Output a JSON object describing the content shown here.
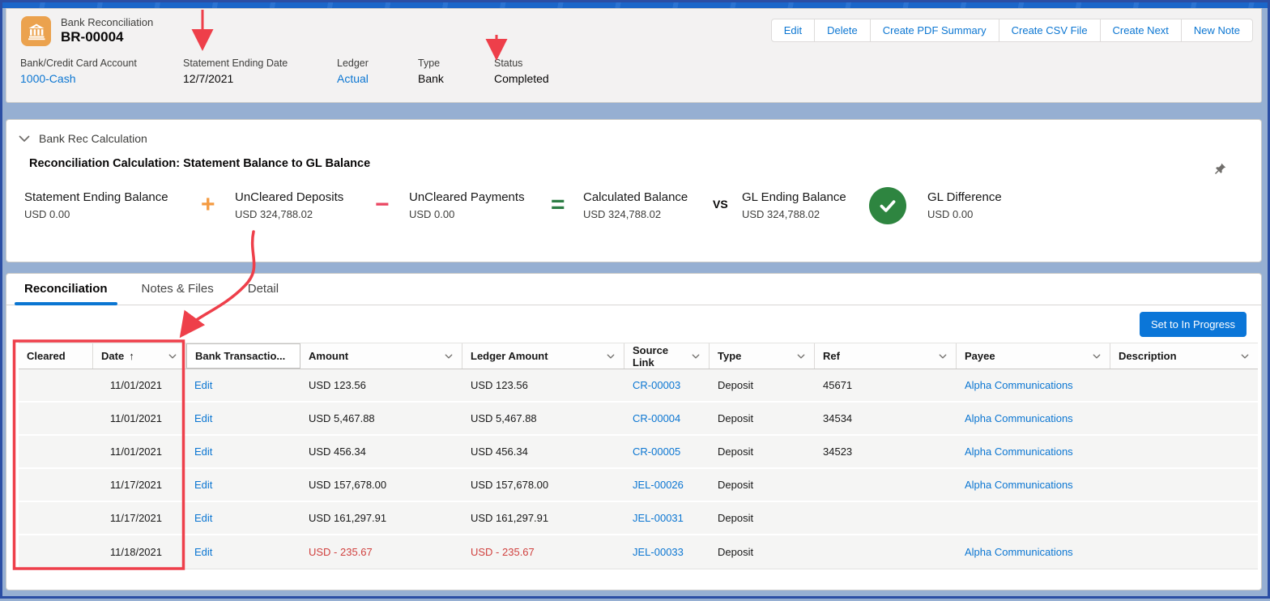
{
  "header": {
    "record_type": "Bank Reconciliation",
    "record_name": "BR-00004",
    "actions": [
      "Edit",
      "Delete",
      "Create PDF Summary",
      "Create CSV File",
      "Create Next",
      "New Note"
    ],
    "fields": [
      {
        "label": "Bank/Credit Card Account",
        "value": "1000-Cash",
        "link": true
      },
      {
        "label": "Statement Ending Date",
        "value": "12/7/2021",
        "link": false
      },
      {
        "label": "Ledger",
        "value": "Actual",
        "link": true
      },
      {
        "label": "Type",
        "value": "Bank",
        "link": false
      },
      {
        "label": "Status",
        "value": "Completed",
        "link": false
      }
    ]
  },
  "calculation": {
    "section_title": "Bank Rec Calculation",
    "title": "Reconciliation Calculation: Statement Balance to GL Balance",
    "items": [
      {
        "label": "Statement Ending Balance",
        "value": "USD 0.00"
      },
      {
        "label": "UnCleared Deposits",
        "value": "USD 324,788.02"
      },
      {
        "label": "UnCleared Payments",
        "value": "USD 0.00"
      },
      {
        "label": "Calculated Balance",
        "value": "USD 324,788.02"
      },
      {
        "label": "GL Ending Balance",
        "value": "USD 324,788.02"
      },
      {
        "label": "GL Difference",
        "value": "USD 0.00"
      }
    ],
    "operators": {
      "plus": "+",
      "minus": "−",
      "equals": "=",
      "vs": "VS"
    }
  },
  "tabs": [
    {
      "label": "Reconciliation",
      "active": true
    },
    {
      "label": "Notes & Files",
      "active": false
    },
    {
      "label": "Detail",
      "active": false
    }
  ],
  "toolbar": {
    "action_label": "Set to In Progress"
  },
  "table": {
    "edit_label": "Edit",
    "columns": [
      {
        "label": "Cleared"
      },
      {
        "label": "Date",
        "sort_icon": "↑",
        "menu": true
      },
      {
        "label": "Bank Transactio...",
        "boxed": true
      },
      {
        "label": "Amount",
        "menu": true
      },
      {
        "label": "Ledger Amount",
        "menu": true
      },
      {
        "label": "Source Link",
        "menu": true
      },
      {
        "label": "Type",
        "menu": true
      },
      {
        "label": "Ref",
        "menu": true
      },
      {
        "label": "Payee",
        "menu": true
      },
      {
        "label": "Description",
        "menu": true
      }
    ],
    "rows": [
      {
        "date": "11/01/2021",
        "amount": "USD 123.56",
        "ledger_amount": "USD 123.56",
        "source_link": "CR-00003",
        "type": "Deposit",
        "ref": "45671",
        "payee": "Alpha Communications",
        "description": "",
        "negative": false
      },
      {
        "date": "11/01/2021",
        "amount": "USD 5,467.88",
        "ledger_amount": "USD 5,467.88",
        "source_link": "CR-00004",
        "type": "Deposit",
        "ref": "34534",
        "payee": "Alpha Communications",
        "description": "",
        "negative": false
      },
      {
        "date": "11/01/2021",
        "amount": "USD 456.34",
        "ledger_amount": "USD 456.34",
        "source_link": "CR-00005",
        "type": "Deposit",
        "ref": "34523",
        "payee": "Alpha Communications",
        "description": "",
        "negative": false
      },
      {
        "date": "11/17/2021",
        "amount": "USD 157,678.00",
        "ledger_amount": "USD 157,678.00",
        "source_link": "JEL-00026",
        "type": "Deposit",
        "ref": "",
        "payee": "Alpha Communications",
        "description": "",
        "negative": false
      },
      {
        "date": "11/17/2021",
        "amount": "USD 161,297.91",
        "ledger_amount": "USD 161,297.91",
        "source_link": "JEL-00031",
        "type": "Deposit",
        "ref": "",
        "payee": "",
        "description": "",
        "negative": false
      },
      {
        "date": "11/18/2021",
        "amount": "USD - 235.67",
        "ledger_amount": "USD - 235.67",
        "source_link": "JEL-00033",
        "type": "Deposit",
        "ref": "",
        "payee": "Alpha Communications",
        "description": "",
        "negative": true
      }
    ]
  },
  "colors": {
    "accent_blue": "#0b76d2",
    "primary_button": "#0b76d8",
    "plus_orange": "#f49b42",
    "minus_red": "#ea4661",
    "equals_green": "#2c7d44",
    "check_green": "#2e8540",
    "negative_amount": "#d0403e",
    "annotation_red": "#ee3f4a",
    "record_icon_orange": "#eba24e"
  }
}
